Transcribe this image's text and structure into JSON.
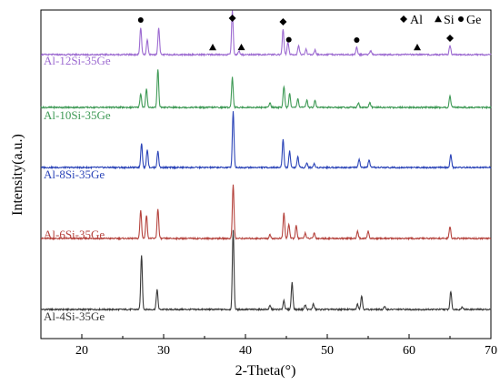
{
  "chart_data": {
    "type": "line",
    "title": "",
    "xlabel": "2-Theta(°)",
    "ylabel": "Intensity(a.u.)",
    "xlim": [
      15,
      70
    ],
    "xticks": [
      20,
      30,
      40,
      50,
      60,
      70
    ],
    "xtick_labels": [
      "20",
      "30",
      "40",
      "50",
      "60",
      "70"
    ],
    "grid": false,
    "legend": {
      "placement": "top-right",
      "entries": [
        {
          "symbol": "◆",
          "label": "Al",
          "shape": "diamond"
        },
        {
          "symbol": "▲",
          "label": "Si",
          "shape": "triangle"
        },
        {
          "symbol": "●",
          "label": "Ge",
          "shape": "circle"
        }
      ]
    },
    "series": [
      {
        "name": "Al-4Si-35Ge",
        "color": "#3a3a3a",
        "peaks": [
          [
            27.3,
            60
          ],
          [
            29.2,
            22
          ],
          [
            38.5,
            88
          ],
          [
            43.0,
            4
          ],
          [
            44.7,
            10
          ],
          [
            45.7,
            30
          ],
          [
            47.3,
            5
          ],
          [
            48.3,
            6
          ],
          [
            53.7,
            6
          ],
          [
            54.2,
            15
          ],
          [
            57.0,
            3
          ],
          [
            65.1,
            20
          ],
          [
            66.5,
            3
          ]
        ]
      },
      {
        "name": "Al-6Si-35Ge",
        "color": "#b5433d",
        "peaks": [
          [
            27.2,
            31
          ],
          [
            27.9,
            26
          ],
          [
            29.3,
            33
          ],
          [
            38.5,
            60
          ],
          [
            43.0,
            4
          ],
          [
            44.7,
            28
          ],
          [
            45.3,
            16
          ],
          [
            46.2,
            14
          ],
          [
            47.3,
            6
          ],
          [
            48.4,
            6
          ],
          [
            53.7,
            8
          ],
          [
            55.0,
            8
          ],
          [
            65.0,
            13
          ]
        ]
      },
      {
        "name": "Al-8Si-35Ge",
        "color": "#2c45b8",
        "peaks": [
          [
            27.3,
            27
          ],
          [
            28.0,
            20
          ],
          [
            29.3,
            18
          ],
          [
            38.5,
            62
          ],
          [
            44.6,
            31
          ],
          [
            45.4,
            18
          ],
          [
            46.4,
            12
          ],
          [
            47.5,
            5
          ],
          [
            48.4,
            4
          ],
          [
            53.9,
            9
          ],
          [
            55.1,
            8
          ],
          [
            65.1,
            14
          ]
        ]
      },
      {
        "name": "Al-10Si-35Ge",
        "color": "#3f9a56",
        "peaks": [
          [
            27.2,
            15
          ],
          [
            27.9,
            20
          ],
          [
            29.3,
            42
          ],
          [
            38.4,
            33
          ],
          [
            43.0,
            5
          ],
          [
            44.7,
            23
          ],
          [
            45.4,
            15
          ],
          [
            46.4,
            10
          ],
          [
            47.5,
            8
          ],
          [
            48.5,
            8
          ],
          [
            53.8,
            5
          ],
          [
            55.2,
            5
          ],
          [
            65.0,
            12
          ]
        ]
      },
      {
        "name": "Al-12Si-35Ge",
        "color": "#9d6bd1",
        "peaks": [
          [
            27.2,
            30
          ],
          [
            28.0,
            16
          ],
          [
            29.4,
            30
          ],
          [
            38.4,
            48
          ],
          [
            39.2,
            4
          ],
          [
            44.6,
            28
          ],
          [
            45.2,
            14
          ],
          [
            46.5,
            10
          ],
          [
            47.4,
            6
          ],
          [
            48.5,
            5
          ],
          [
            53.6,
            8
          ],
          [
            55.3,
            4
          ],
          [
            65.0,
            10
          ]
        ]
      }
    ],
    "phase_markers": [
      {
        "shape": "circle",
        "x": 27.2,
        "series": "Al-12Si-35Ge"
      },
      {
        "shape": "diamond",
        "x": 38.4,
        "series": "Al-12Si-35Ge"
      },
      {
        "shape": "triangle",
        "x": 36.0,
        "series": "Al-12Si-35Ge"
      },
      {
        "shape": "triangle",
        "x": 39.5,
        "series": "Al-12Si-35Ge"
      },
      {
        "shape": "diamond",
        "x": 44.6,
        "series": "Al-12Si-35Ge"
      },
      {
        "shape": "circle",
        "x": 45.3,
        "series": "Al-12Si-35Ge"
      },
      {
        "shape": "circle",
        "x": 53.6,
        "series": "Al-12Si-35Ge"
      },
      {
        "shape": "triangle",
        "x": 61.0,
        "series": "Al-12Si-35Ge"
      },
      {
        "shape": "diamond",
        "x": 65.0,
        "series": "Al-12Si-35Ge"
      }
    ]
  }
}
